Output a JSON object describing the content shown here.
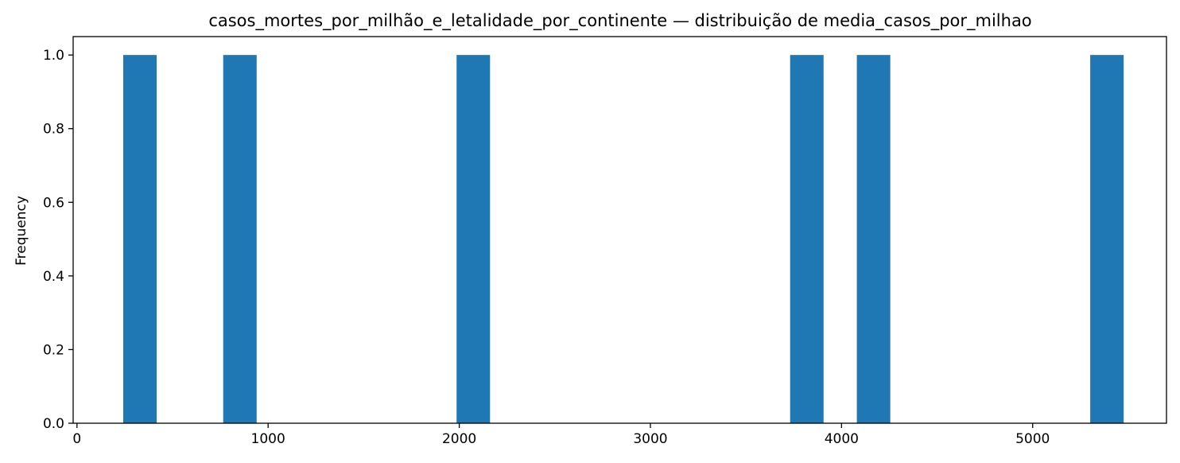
{
  "chart_data": {
    "type": "bar",
    "subtype": "histogram",
    "title": "casos_mortes_por_milhão_e_letalidade_por_continente — distribuição de media_casos_por_milhao",
    "xlabel": "",
    "ylabel": "Frequency",
    "xlim": [
      -20,
      5700
    ],
    "ylim": [
      0,
      1.05
    ],
    "x_ticks": [
      0,
      1000,
      2000,
      3000,
      4000,
      5000
    ],
    "y_ticks": [
      0.0,
      0.2,
      0.4,
      0.6,
      0.8,
      1.0
    ],
    "y_tick_labels": [
      "0.0",
      "0.2",
      "0.4",
      "0.6",
      "0.8",
      "1.0"
    ],
    "bar_color": "#1f77b4",
    "grid": false,
    "legend": false,
    "bins": [
      {
        "x0": 242,
        "x1": 417,
        "count": 1
      },
      {
        "x0": 765,
        "x1": 940,
        "count": 1
      },
      {
        "x0": 1986,
        "x1": 2161,
        "count": 1
      },
      {
        "x0": 3731,
        "x1": 3906,
        "count": 1
      },
      {
        "x0": 4080,
        "x1": 4255,
        "count": 1
      },
      {
        "x0": 5301,
        "x1": 5476,
        "count": 1
      }
    ]
  }
}
